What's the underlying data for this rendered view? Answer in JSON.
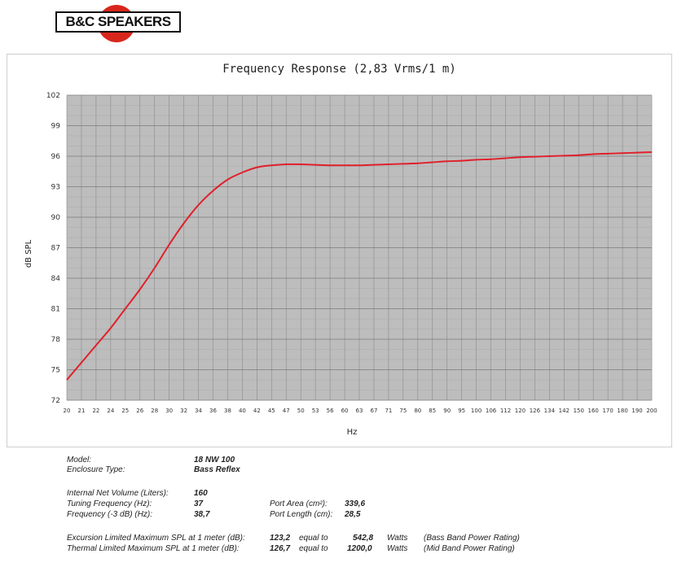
{
  "brand": {
    "name": "B&C SPEAKERS"
  },
  "chart_data": {
    "type": "line",
    "title": "Frequency Response (2,83 Vrms/1 m)",
    "xlabel": "Hz",
    "ylabel": "dB SPL",
    "xscale": "category",
    "x_ticks": [
      "20",
      "21",
      "22",
      "24",
      "25",
      "26",
      "28",
      "30",
      "32",
      "34",
      "36",
      "38",
      "40",
      "42",
      "45",
      "47",
      "50",
      "53",
      "56",
      "60",
      "63",
      "67",
      "71",
      "75",
      "80",
      "85",
      "90",
      "95",
      "100",
      "106",
      "112",
      "120",
      "126",
      "134",
      "142",
      "150",
      "160",
      "170",
      "180",
      "190",
      "200"
    ],
    "y_ticks": [
      72,
      75,
      78,
      81,
      84,
      87,
      90,
      93,
      96,
      99,
      102
    ],
    "ylim": [
      72,
      102
    ],
    "grid": true,
    "series": [
      {
        "color": "#e0202a",
        "x": [
          20,
          21,
          22,
          24,
          25,
          26,
          28,
          30,
          32,
          34,
          36,
          38,
          40,
          42,
          45,
          47,
          50,
          53,
          56,
          60,
          63,
          67,
          71,
          75,
          80,
          85,
          90,
          95,
          100,
          106,
          112,
          120,
          126,
          134,
          142,
          150,
          160,
          170,
          180,
          190,
          200
        ],
        "y": [
          74.0,
          75.7,
          77.4,
          79.1,
          81.0,
          82.9,
          85.0,
          87.3,
          89.4,
          91.2,
          92.6,
          93.7,
          94.4,
          94.9,
          95.1,
          95.2,
          95.2,
          95.15,
          95.1,
          95.1,
          95.1,
          95.15,
          95.2,
          95.25,
          95.3,
          95.4,
          95.5,
          95.55,
          95.65,
          95.7,
          95.8,
          95.9,
          95.95,
          96.0,
          96.05,
          96.1,
          96.2,
          96.25,
          96.3,
          96.35,
          96.4
        ]
      }
    ]
  },
  "specs": {
    "model_label": "Model:",
    "model_value": "18 NW 100",
    "enclosure_label": "Enclosure Type:",
    "enclosure_value": "Bass Reflex",
    "volume_label": "Internal  Net Volume (Liters):",
    "volume_value": "160",
    "tuning_label": "Tuning Frequency (Hz):",
    "tuning_value": "37",
    "freq3db_label": "Frequency (-3 dB) (Hz):",
    "freq3db_value": "38,7",
    "port_area_label": "Port Area (cm²):",
    "port_area_value": "339,6",
    "port_length_label": "Port Length (cm):",
    "port_length_value": "28,5",
    "excursion_label": "Excursion Limited Maximum SPL at 1 meter (dB):",
    "excursion_value": "123,2",
    "thermal_label": "Thermal Limited Maximum SPL at 1 meter (dB):",
    "thermal_value": "126,7",
    "equal_to": "equal to",
    "excursion_watts_value": "542,8",
    "thermal_watts_value": "1200,0",
    "watts_unit": "Watts",
    "bass_note": "(Bass Band Power Rating)",
    "mid_note": "(Mid Band Power Rating)"
  }
}
